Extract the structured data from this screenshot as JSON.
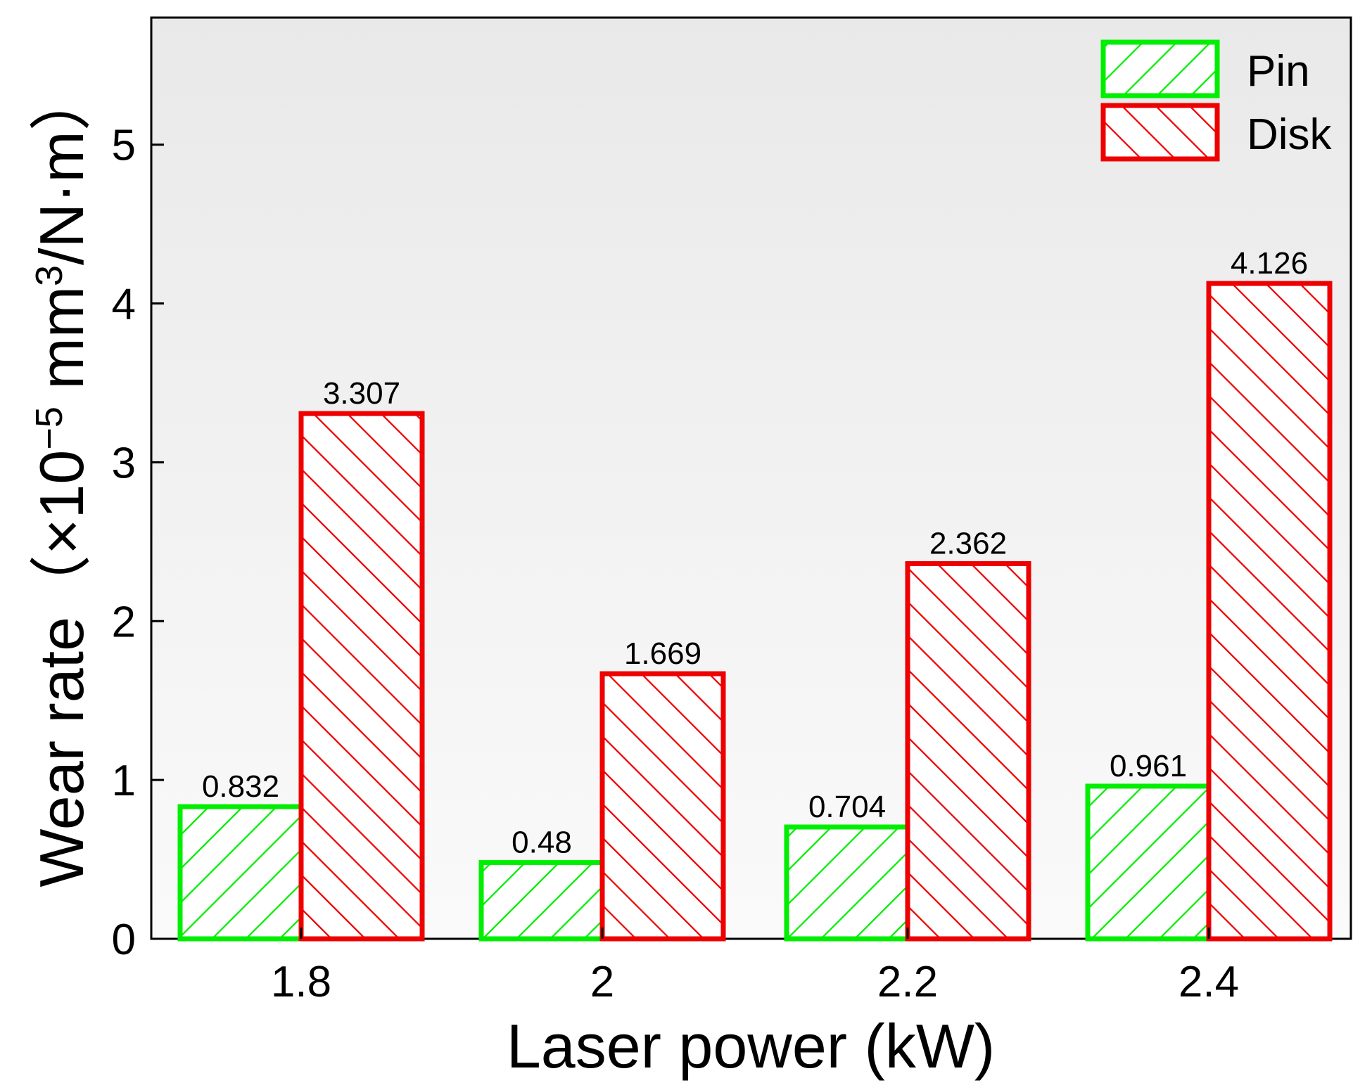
{
  "chart_data": {
    "type": "bar",
    "categories": [
      "1.8",
      "2",
      "2.2",
      "2.4"
    ],
    "series": [
      {
        "name": "Pin",
        "values": [
          0.832,
          0.48,
          0.704,
          0.961
        ],
        "color": "#00ee00",
        "hatch": "forward"
      },
      {
        "name": "Disk",
        "values": [
          3.307,
          1.669,
          2.362,
          4.126
        ],
        "color": "#ee0000",
        "hatch": "backward"
      }
    ],
    "data_labels": {
      "Pin": [
        "0.832",
        "0.48",
        "0.704",
        "0.961"
      ],
      "Disk": [
        "3.307",
        "1.669",
        "2.362",
        "4.126"
      ]
    },
    "xlabel": "Laser power (kW)",
    "ylabel": "Wear rate（×10⁻⁵ mm³/N·m）",
    "ylabel_parts": {
      "main": "Wear rate（×10",
      "exp1": "−5",
      "mid": " mm",
      "exp2": "3",
      "tail": "/N·m）"
    },
    "ylim": [
      0,
      5.8
    ],
    "yticks": [
      0,
      1,
      2,
      3,
      4,
      5
    ],
    "ytick_labels": [
      "0",
      "1",
      "2",
      "3",
      "4",
      "5"
    ],
    "legend_position": "top-right",
    "background": "#efefef",
    "grid": false
  }
}
